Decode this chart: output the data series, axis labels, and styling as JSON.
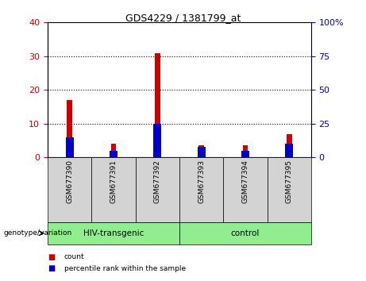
{
  "title": "GDS4229 / 1381799_at",
  "samples": [
    "GSM677390",
    "GSM677391",
    "GSM677392",
    "GSM677393",
    "GSM677394",
    "GSM677395"
  ],
  "count_values": [
    17,
    4,
    31,
    3.5,
    3.5,
    7
  ],
  "percentile_values": [
    6,
    2,
    10,
    3,
    2,
    4
  ],
  "left_ylim": [
    0,
    40
  ],
  "right_ylim": [
    0,
    100
  ],
  "left_yticks": [
    0,
    10,
    20,
    30,
    40
  ],
  "right_yticks": [
    0,
    25,
    50,
    75,
    100
  ],
  "right_yticklabels": [
    "0",
    "25",
    "50",
    "75",
    "100%"
  ],
  "groups": [
    {
      "label": "HIV-transgenic",
      "start": 0,
      "end": 3,
      "color": "#90EE90"
    },
    {
      "label": "control",
      "start": 3,
      "end": 6,
      "color": "#90EE90"
    }
  ],
  "count_color": "#CC0000",
  "percentile_color": "#0000CC",
  "bg_color": "#ffffff",
  "label_box_color": "#d3d3d3",
  "genotype_label": "genotype/variation",
  "legend_count": "count",
  "legend_percentile": "percentile rank within the sample",
  "left_tick_color": "#CC0000",
  "right_tick_color": "#0000CC",
  "grid_yticks": [
    10,
    20,
    30
  ]
}
